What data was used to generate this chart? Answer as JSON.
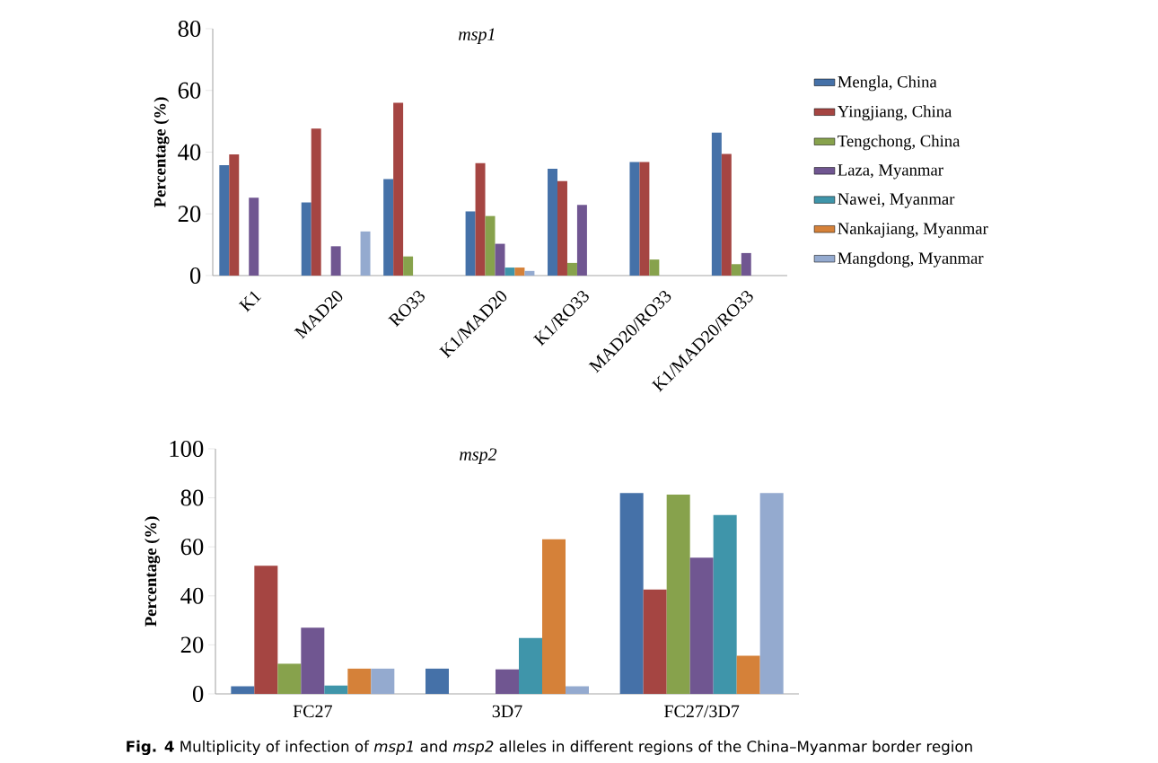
{
  "chart_data": [
    {
      "type": "bar",
      "title": "msp1",
      "ylabel": "Percentage (%)",
      "categories": [
        "K1",
        "MAD20",
        "RO33",
        "K1/MAD20",
        "K1/RO33",
        "MAD20/RO33",
        "K1/MAD20/RO33"
      ],
      "ylim": [
        0,
        80
      ],
      "yticks": [
        0,
        20,
        40,
        60,
        80
      ],
      "legend": "right",
      "series": [
        {
          "name": "Mengla, China",
          "color": "#4571a8",
          "values": [
            35.8,
            23.7,
            31.3,
            20.8,
            34.6,
            36.8,
            46.3
          ]
        },
        {
          "name": "Yingjiang, China",
          "color": "#a54542",
          "values": [
            39.3,
            47.6,
            56,
            36.4,
            30.6,
            36.8,
            39.4
          ]
        },
        {
          "name": "Tengchong, China",
          "color": "#87a24c",
          "values": [
            0,
            0,
            6.2,
            19.3,
            4.1,
            5.2,
            3.7
          ]
        },
        {
          "name": "Laza, Myanmar",
          "color": "#705691",
          "values": [
            25.2,
            9.5,
            0,
            10.3,
            22.9,
            0,
            7.3
          ]
        },
        {
          "name": "Nawei, Myanmar",
          "color": "#3f95aa",
          "values": [
            0,
            0,
            0,
            2.6,
            0,
            0,
            0
          ]
        },
        {
          "name": "Nankajiang, Myanmar",
          "color": "#d58139",
          "values": [
            0,
            0,
            0,
            2.6,
            0,
            0,
            0
          ]
        },
        {
          "name": "Mangdong, Myanmar",
          "color": "#94aacf",
          "values": [
            0,
            14.3,
            0,
            1.5,
            0,
            0,
            0
          ]
        }
      ]
    },
    {
      "type": "bar",
      "title": "msp2",
      "ylabel": "Percentage (%)",
      "categories": [
        "FC27",
        "3D7",
        "FC27/3D7"
      ],
      "ylim": [
        0,
        100
      ],
      "yticks": [
        0,
        20,
        40,
        60,
        80,
        100
      ],
      "annotations": [
        "**Fig. 4** Multiplicity of infection of *msp1* and *msp2* alleles in different regions of the China–Myanmar border region"
      ],
      "series": [
        {
          "color": "#4571a8",
          "values": [
            3.1,
            10.3,
            82
          ]
        },
        {
          "color": "#a54542",
          "values": [
            52.3,
            0,
            42.6
          ]
        },
        {
          "color": "#87a24c",
          "values": [
            12.3,
            0,
            81.3
          ]
        },
        {
          "color": "#705691",
          "values": [
            27,
            10,
            55.6
          ]
        },
        {
          "color": "#3f95aa",
          "values": [
            3.4,
            22.8,
            73
          ]
        },
        {
          "color": "#d58139",
          "values": [
            10.3,
            63.1,
            15.6
          ]
        },
        {
          "color": "#94aacf",
          "values": [
            10.3,
            3.1,
            82
          ]
        }
      ]
    }
  ]
}
